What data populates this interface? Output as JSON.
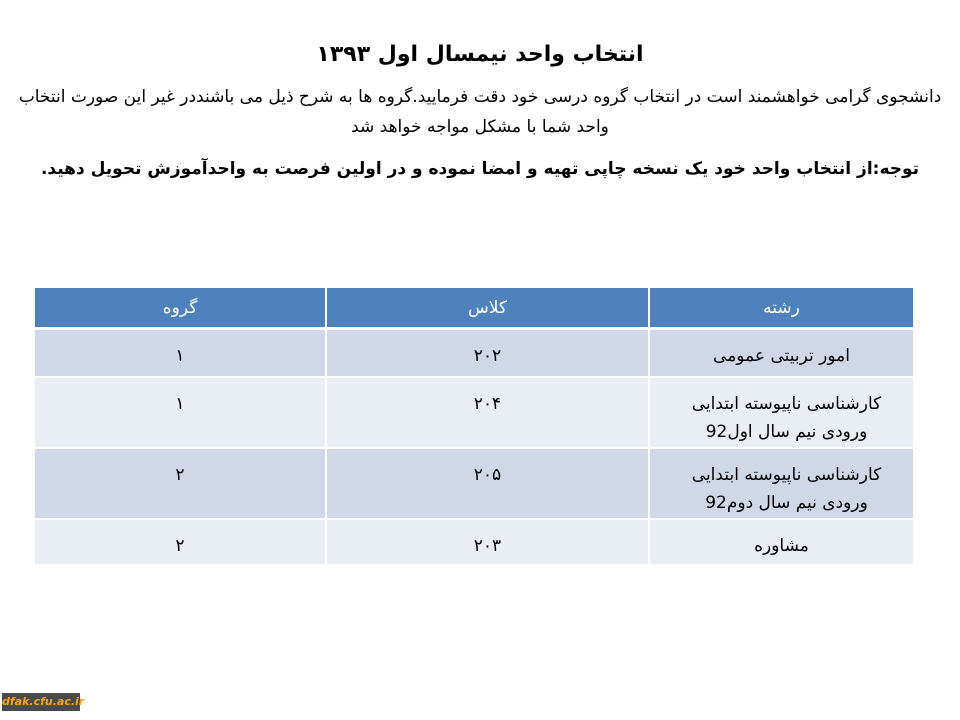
{
  "title": "انتخاب واحد نیمسال اول ۱۳۹۳",
  "intro": "دانشجوی گرامی خواهشمند است در انتخاب گروه درسی خود دقت فرمایید.گروه ها به شرح ذیل می باشنددر غیر این صورت انتخاب واحد شما با مشکل مواجه خواهد شد",
  "note": "توجه:از انتخاب واحد خود یک نسخه چاپی تهیه و امضا نموده و در اولین فرصت به واحدآموزش تحویل دهید.",
  "table": {
    "headers": [
      "رشته",
      "کلاس",
      "گروه"
    ],
    "rows": [
      {
        "field": "امور تربیتی عمومی",
        "class": "۲۰۲",
        "group": "۱"
      },
      {
        "field": "کارشناسی ناپیوسته ابتدایی ورودی نیم سال اول92",
        "class": "۲۰۴",
        "group": "۱"
      },
      {
        "field": "کارشناسی ناپیوسته ابتدایی ورودی نیم سال دوم92",
        "class": "۲۰۵",
        "group": "۲"
      },
      {
        "field": "مشاوره",
        "class": "۲۰۳",
        "group": "۲"
      }
    ]
  },
  "logo": "dfak.cfu.ac.ir",
  "colors": {
    "header": "#4f81bd",
    "row_odd": "#d0d8e8",
    "row_even": "#e9edf4"
  }
}
